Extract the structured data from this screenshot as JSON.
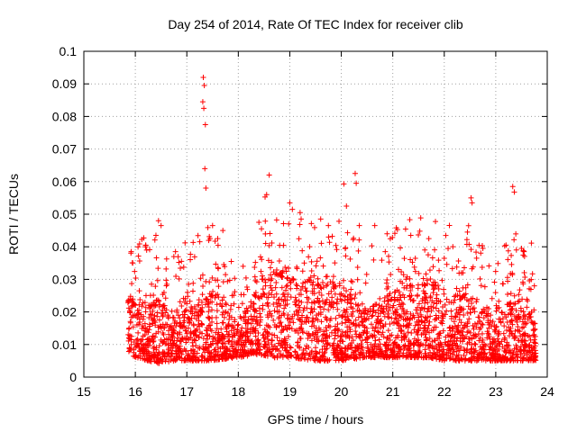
{
  "chart_data": {
    "type": "scatter",
    "title": "Day 254 of 2014, Rate Of TEC Index for receiver clib",
    "xlabel": "GPS time / hours",
    "ylabel": "ROTI / TECUs",
    "xlim": [
      15,
      24
    ],
    "ylim": [
      0,
      0.1
    ],
    "xticks": [
      "15",
      "16",
      "17",
      "18",
      "19",
      "20",
      "21",
      "22",
      "23",
      "24"
    ],
    "yticks": [
      "0",
      "0.01",
      "0.02",
      "0.03",
      "0.04",
      "0.05",
      "0.06",
      "0.07",
      "0.08",
      "0.09",
      "0.1"
    ],
    "grid": true,
    "marker": "+",
    "series": [
      {
        "name": "ROTI",
        "color": "#ff0000",
        "points": [
          [
            17.32,
            0.092
          ],
          [
            17.34,
            0.0895
          ],
          [
            17.31,
            0.0845
          ],
          [
            17.33,
            0.0825
          ],
          [
            17.36,
            0.0775
          ],
          [
            17.35,
            0.064
          ],
          [
            17.37,
            0.058
          ],
          [
            18.6,
            0.062
          ],
          [
            20.27,
            0.0625
          ],
          [
            20.29,
            0.0595
          ],
          [
            20.05,
            0.0593
          ],
          [
            23.33,
            0.0585
          ],
          [
            23.36,
            0.0568
          ],
          [
            22.52,
            0.055
          ],
          [
            22.54,
            0.0535
          ],
          [
            18.55,
            0.056
          ],
          [
            18.52,
            0.0553
          ],
          [
            19.0,
            0.0535
          ],
          [
            19.05,
            0.0515
          ],
          [
            19.2,
            0.0505
          ],
          [
            19.22,
            0.0485
          ],
          [
            20.1,
            0.0525
          ],
          [
            20.65,
            0.0465
          ],
          [
            16.45,
            0.048
          ],
          [
            16.5,
            0.0465
          ],
          [
            17.5,
            0.0465
          ],
          [
            17.7,
            0.045
          ],
          [
            15.92,
            0.0385
          ],
          [
            15.95,
            0.035
          ],
          [
            16.2,
            0.0405
          ],
          [
            16.22,
            0.039
          ],
          [
            16.78,
            0.0385
          ],
          [
            16.4,
            0.0435
          ],
          [
            17.45,
            0.0425
          ],
          [
            17.6,
            0.0425
          ],
          [
            18.4,
            0.0475
          ],
          [
            18.45,
            0.0455
          ],
          [
            19.6,
            0.0485
          ],
          [
            19.75,
            0.0465
          ],
          [
            20.35,
            0.0465
          ],
          [
            21.35,
            0.0435
          ],
          [
            21.7,
            0.0425
          ],
          [
            22.45,
            0.0445
          ],
          [
            22.75,
            0.0395
          ],
          [
            23.2,
            0.0405
          ],
          [
            23.5,
            0.0395
          ],
          [
            23.55,
            0.0385
          ],
          [
            23.75,
            0.028
          ]
        ]
      }
    ],
    "density_envelope": {
      "description": "bulk of measurements: x in hours, y range of dense scatter",
      "x": [
        15.85,
        16.0,
        16.5,
        16.8,
        17.0,
        17.5,
        18.0,
        18.4,
        18.7,
        19.0,
        19.5,
        20.0,
        20.5,
        20.9,
        21.3,
        21.7,
        22.0,
        22.5,
        22.8,
        23.0,
        23.3,
        23.6,
        23.78
      ],
      "y_low": [
        0.007,
        0.006,
        0.004,
        0.005,
        0.005,
        0.005,
        0.006,
        0.007,
        0.006,
        0.006,
        0.005,
        0.005,
        0.006,
        0.006,
        0.006,
        0.006,
        0.005,
        0.005,
        0.005,
        0.005,
        0.005,
        0.005,
        0.005
      ],
      "y_high": [
        0.025,
        0.022,
        0.022,
        0.018,
        0.02,
        0.025,
        0.016,
        0.025,
        0.032,
        0.03,
        0.028,
        0.028,
        0.02,
        0.025,
        0.028,
        0.028,
        0.025,
        0.025,
        0.02,
        0.018,
        0.022,
        0.024,
        0.016
      ]
    }
  }
}
